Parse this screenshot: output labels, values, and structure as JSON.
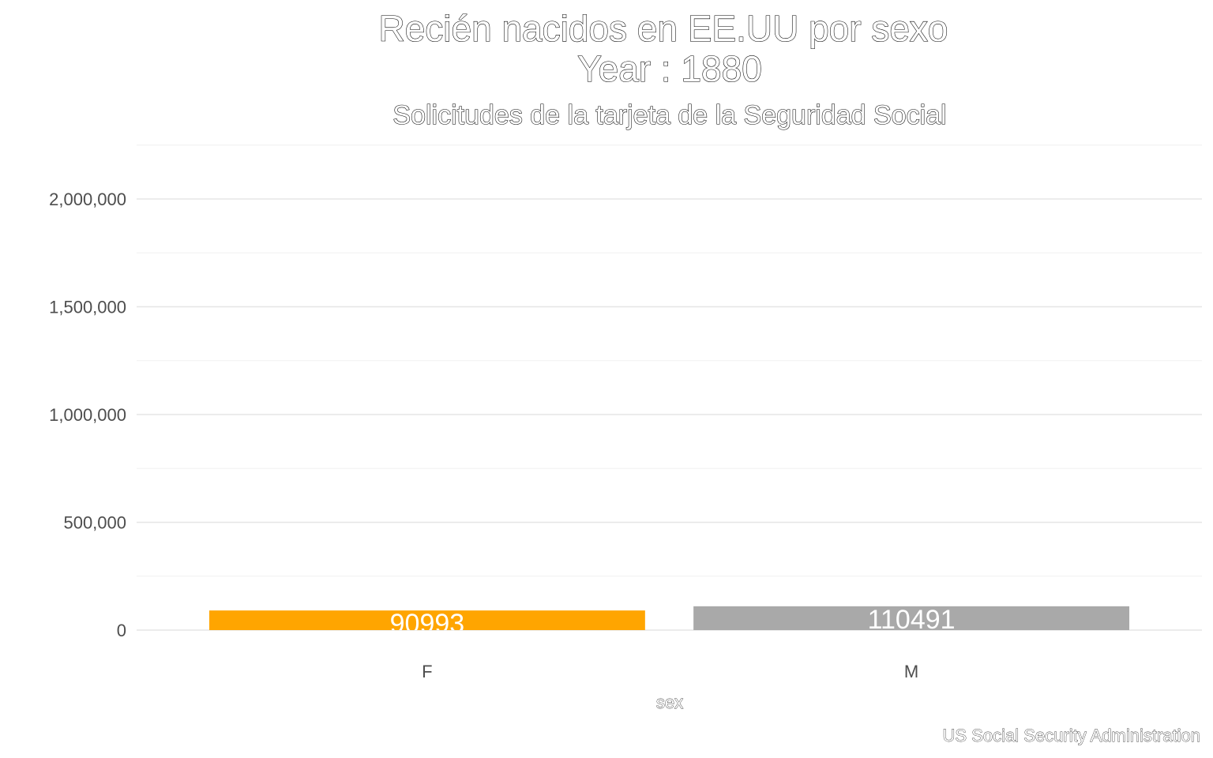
{
  "chart_data": {
    "type": "bar",
    "title": "Recién nacidos en EE.UU por sexo",
    "title_year": "Year : 1880",
    "subtitle": "Solicitudes de la tarjeta de la Seguridad Social",
    "xlabel": "sex",
    "ylabel": "",
    "caption": "US Social Security Administration",
    "categories": [
      "F",
      "M"
    ],
    "values": [
      90993,
      110491
    ],
    "data_labels": [
      "90993",
      "110491"
    ],
    "bar_colors": [
      "#FFA500",
      "#A9A9A9"
    ],
    "ylim": [
      0,
      2250000
    ],
    "yticks": [
      0,
      500000,
      1000000,
      1500000,
      2000000
    ],
    "ytick_labels": [
      "0",
      "500,000",
      "1,000,000",
      "1,500,000",
      "2,000,000"
    ],
    "grid": true,
    "legend": "none"
  }
}
